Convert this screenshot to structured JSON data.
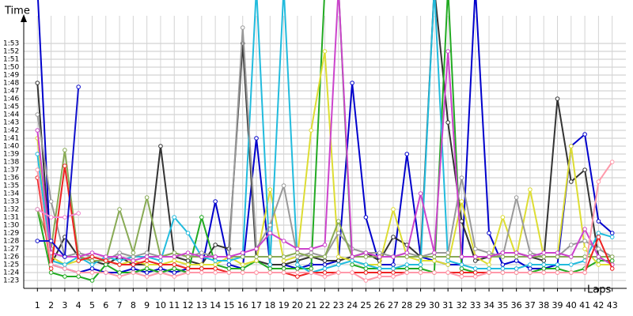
{
  "chart_data": {
    "type": "line",
    "ylabel": "Time",
    "xlabel": "Laps",
    "x": [
      1,
      2,
      3,
      4,
      5,
      6,
      7,
      8,
      9,
      10,
      11,
      12,
      13,
      14,
      15,
      16,
      17,
      18,
      19,
      20,
      21,
      22,
      23,
      24,
      25,
      26,
      27,
      28,
      29,
      30,
      31,
      32,
      33,
      34,
      35,
      36,
      37,
      38,
      39,
      40,
      41,
      42,
      43
    ],
    "xlim": [
      0,
      44
    ],
    "xticks": [
      1,
      2,
      3,
      4,
      5,
      6,
      7,
      8,
      9,
      10,
      11,
      12,
      13,
      14,
      15,
      16,
      17,
      18,
      19,
      20,
      21,
      22,
      23,
      24,
      25,
      26,
      27,
      28,
      29,
      30,
      31,
      32,
      33,
      34,
      35,
      36,
      37,
      38,
      39,
      40,
      41,
      42,
      43
    ],
    "ylim": [
      82,
      118
    ],
    "yticks": [
      {
        "value": 83,
        "label": "1:23"
      },
      {
        "value": 84,
        "label": "1:24"
      },
      {
        "value": 85,
        "label": "1:25"
      },
      {
        "value": 86,
        "label": "1:26"
      },
      {
        "value": 87,
        "label": "1:27"
      },
      {
        "value": 88,
        "label": "1:28"
      },
      {
        "value": 89,
        "label": "1:29"
      },
      {
        "value": 90,
        "label": "1:30"
      },
      {
        "value": 91,
        "label": "1:31"
      },
      {
        "value": 92,
        "label": "1:32"
      },
      {
        "value": 93,
        "label": "1:33"
      },
      {
        "value": 94,
        "label": "1:34"
      },
      {
        "value": 95,
        "label": "1:35"
      },
      {
        "value": 96,
        "label": "1:36"
      },
      {
        "value": 97,
        "label": "1:37"
      },
      {
        "value": 98,
        "label": "1:38"
      },
      {
        "value": 99,
        "label": "1:39"
      },
      {
        "value": 100,
        "label": "1:40"
      },
      {
        "value": 101,
        "label": "1:41"
      },
      {
        "value": 102,
        "label": "1:42"
      },
      {
        "value": 103,
        "label": "1:43"
      },
      {
        "value": 104,
        "label": "1:44"
      },
      {
        "value": 105,
        "label": "1:45"
      },
      {
        "value": 106,
        "label": "1:46"
      },
      {
        "value": 107,
        "label": "1:47"
      },
      {
        "value": 108,
        "label": "1:48"
      },
      {
        "value": 109,
        "label": "1:49"
      },
      {
        "value": 110,
        "label": "1:50"
      },
      {
        "value": 111,
        "label": "1:51"
      },
      {
        "value": 112,
        "label": "1:52"
      },
      {
        "value": 113,
        "label": "1:53"
      }
    ],
    "grid": true,
    "series": [
      {
        "color": "#0000cc",
        "values": [
          120,
          85,
          84.5,
          84,
          84.5,
          84,
          84,
          84.5,
          84,
          84.5,
          84,
          84.5,
          84.5,
          93,
          85,
          84.5,
          101,
          85,
          85,
          84.5,
          85,
          85,
          85.5,
          108,
          91,
          85,
          85,
          99,
          86,
          85.5,
          85,
          85,
          120,
          89,
          85,
          85.5,
          84.5,
          84.5,
          85,
          100,
          101.5,
          90.5,
          89
        ]
      },
      {
        "color": "#333333",
        "values": [
          108,
          85,
          88.5,
          86,
          85.5,
          85,
          86,
          85,
          85,
          100,
          86,
          85.5,
          85,
          87.5,
          87,
          113,
          85.5,
          85,
          85,
          85.5,
          86,
          85.5,
          85.5,
          86,
          86.5,
          85.5,
          88.5,
          87.5,
          86,
          120,
          103,
          90.5,
          85.5,
          86,
          86.5,
          86.5,
          86,
          85.5,
          106,
          95.5,
          97,
          86,
          85
        ]
      },
      {
        "color": "#22aa22",
        "values": [
          92,
          84,
          83.5,
          83.5,
          83,
          85,
          84,
          84,
          84.5,
          84,
          84.5,
          84,
          91,
          85,
          84.5,
          84.5,
          85.5,
          84.5,
          84.5,
          84.5,
          84.5,
          120,
          120,
          85,
          84.5,
          84.5,
          84.5,
          84.5,
          84.5,
          84,
          120,
          84.5,
          84,
          84,
          84,
          84,
          84,
          84.5,
          84.5,
          84,
          84.5,
          85.5,
          85.5
        ]
      },
      {
        "color": "#dddd33",
        "values": [
          101,
          86,
          85,
          85.5,
          86,
          85.5,
          85,
          85.5,
          85,
          85,
          85.5,
          85,
          85,
          85,
          86,
          85,
          85.5,
          94.5,
          85.5,
          86,
          102,
          112,
          86,
          85.5,
          85,
          85,
          92,
          86,
          85.5,
          85.5,
          85,
          93,
          86,
          85,
          91,
          86,
          94.5,
          86,
          86,
          100,
          87,
          85,
          85
        ]
      },
      {
        "color": "#22bbdd",
        "values": [
          99,
          85.5,
          85,
          86,
          85,
          86,
          85.5,
          86,
          86,
          85.5,
          91,
          89,
          86,
          85.5,
          85.5,
          86,
          120,
          85,
          120,
          85,
          84,
          84.5,
          85,
          85.5,
          85,
          84.5,
          84.5,
          85,
          85,
          120,
          85.5,
          85,
          84.5,
          84.5,
          84.5,
          84.5,
          85,
          85,
          85,
          85,
          85.5,
          89,
          88.5
        ]
      },
      {
        "color": "#999999",
        "values": [
          104,
          93,
          86,
          86.5,
          86,
          85.5,
          86.5,
          86,
          86.5,
          86,
          86.5,
          86,
          86.5,
          86,
          86,
          115,
          87,
          90,
          95,
          86,
          86.5,
          86,
          89,
          87,
          86.5,
          86.5,
          86,
          86.5,
          86,
          86.5,
          86.5,
          96,
          87,
          86.5,
          86,
          93.5,
          86.5,
          86,
          86,
          87.5,
          88,
          87,
          86
        ]
      },
      {
        "color": "#88aa55",
        "values": [
          92,
          87,
          99.5,
          86,
          85.5,
          85.5,
          92,
          86.5,
          93.5,
          86,
          86.5,
          86,
          86,
          86,
          86,
          86,
          86,
          86,
          86,
          86.5,
          86,
          86,
          90.5,
          86,
          86,
          86,
          86,
          86,
          86,
          86,
          86,
          86,
          86,
          86,
          86,
          86,
          86,
          86,
          86,
          86,
          86,
          86,
          86
        ]
      },
      {
        "color": "#cc44cc",
        "values": [
          102,
          86.5,
          86,
          86,
          86.5,
          86,
          86,
          85.5,
          86,
          86,
          86,
          86.5,
          86,
          86,
          86,
          86.5,
          87,
          89,
          88,
          87,
          87,
          87.5,
          120,
          86,
          86.5,
          86,
          86,
          86.5,
          94,
          86.5,
          112,
          86,
          86,
          86,
          86.5,
          86.5,
          86,
          86.5,
          86.5,
          86,
          89.5,
          86,
          85
        ]
      },
      {
        "color": "#ee2222",
        "values": [
          96,
          84.5,
          97.5,
          85.5,
          86,
          85.5,
          85,
          85,
          85.5,
          85,
          85,
          84.5,
          84.5,
          84.5,
          84,
          84,
          84,
          84,
          84,
          83.5,
          84,
          84,
          84,
          84,
          84,
          84,
          84,
          84,
          84,
          84,
          84,
          84,
          84,
          84,
          84,
          84,
          84,
          84,
          84,
          84,
          84,
          88.5,
          84.5
        ]
      },
      {
        "color": "#ff99aa",
        "values": [
          97,
          85,
          84.5,
          84,
          84,
          84,
          83.5,
          84,
          83.5,
          84,
          83.5,
          84,
          84,
          84,
          84,
          84,
          84,
          84,
          84,
          84,
          84,
          83.5,
          84,
          84,
          83,
          83.5,
          83.5,
          84,
          84,
          84,
          84,
          83.5,
          83.5,
          84,
          84,
          84,
          84,
          84,
          84,
          84,
          84,
          95.5,
          98
        ]
      },
      {
        "color": "#ee88cc",
        "values": [
          92,
          91,
          91,
          91.5,
          null,
          null,
          null,
          null,
          null,
          null,
          null,
          null,
          null,
          null,
          null,
          null,
          null,
          null,
          null,
          null,
          null,
          null,
          null,
          null,
          null,
          null,
          null,
          null,
          null,
          null,
          null,
          null,
          null,
          null,
          null,
          null,
          null,
          null,
          null,
          null,
          null,
          null,
          null
        ]
      },
      {
        "color": "#1111cc",
        "values": [
          88,
          88,
          86,
          107.5,
          null,
          null,
          null,
          null,
          null,
          null,
          null,
          null,
          null,
          null,
          null,
          null,
          null,
          null,
          null,
          null,
          null,
          null,
          null,
          null,
          null,
          null,
          null,
          null,
          null,
          null,
          null,
          null,
          null,
          null,
          null,
          null,
          null,
          null,
          null,
          null,
          null,
          null,
          null
        ]
      }
    ]
  }
}
